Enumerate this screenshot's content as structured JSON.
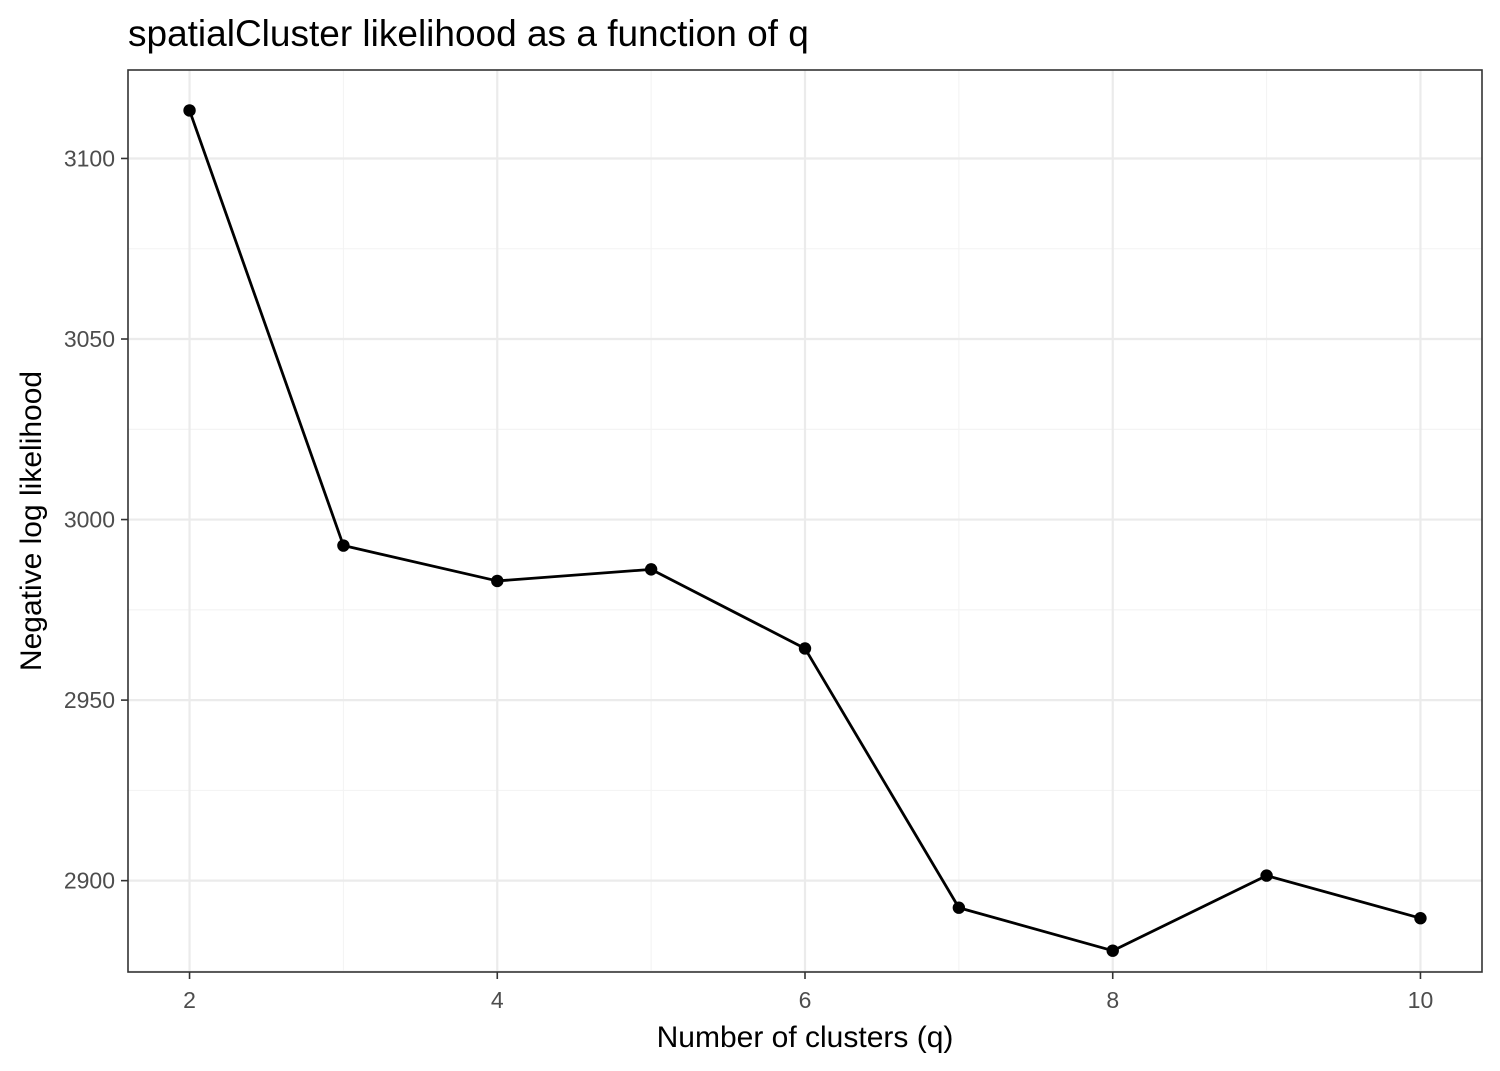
{
  "chart_data": {
    "type": "line",
    "title": "spatialCluster likelihood as a function of q",
    "xlabel": "Number of clusters (q)",
    "ylabel": "Negative log likelihood",
    "x": [
      2,
      3,
      4,
      5,
      6,
      7,
      8,
      9,
      10
    ],
    "series": [
      {
        "values": [
          3113.3,
          2992.8,
          2983.0,
          2986.2,
          2964.3,
          2892.5,
          2880.6,
          2901.4,
          2889.6
        ],
        "color": "#000000"
      }
    ],
    "xlim": [
      1.6,
      10.4
    ],
    "ylim": [
      2874.7,
      3124.5
    ],
    "xticks": [
      2,
      4,
      6,
      8,
      10
    ],
    "xtick_labels": [
      "2",
      "4",
      "6",
      "8",
      "10"
    ],
    "xminor": [
      3,
      5,
      7,
      9
    ],
    "yticks": [
      2900,
      2950,
      3000,
      3050,
      3100
    ],
    "ytick_labels": [
      "2900",
      "2950",
      "3000",
      "3050",
      "3100"
    ],
    "yminor": [
      2875,
      2925,
      2975,
      3025,
      3075
    ],
    "grid": true,
    "legend": "none",
    "colors": {
      "line": "#000000",
      "point": "#000000",
      "grid_major": "#ebebeb",
      "grid_minor": "#f3f3f3",
      "border": "#333333",
      "tick_text": "#4d4d4d"
    }
  }
}
